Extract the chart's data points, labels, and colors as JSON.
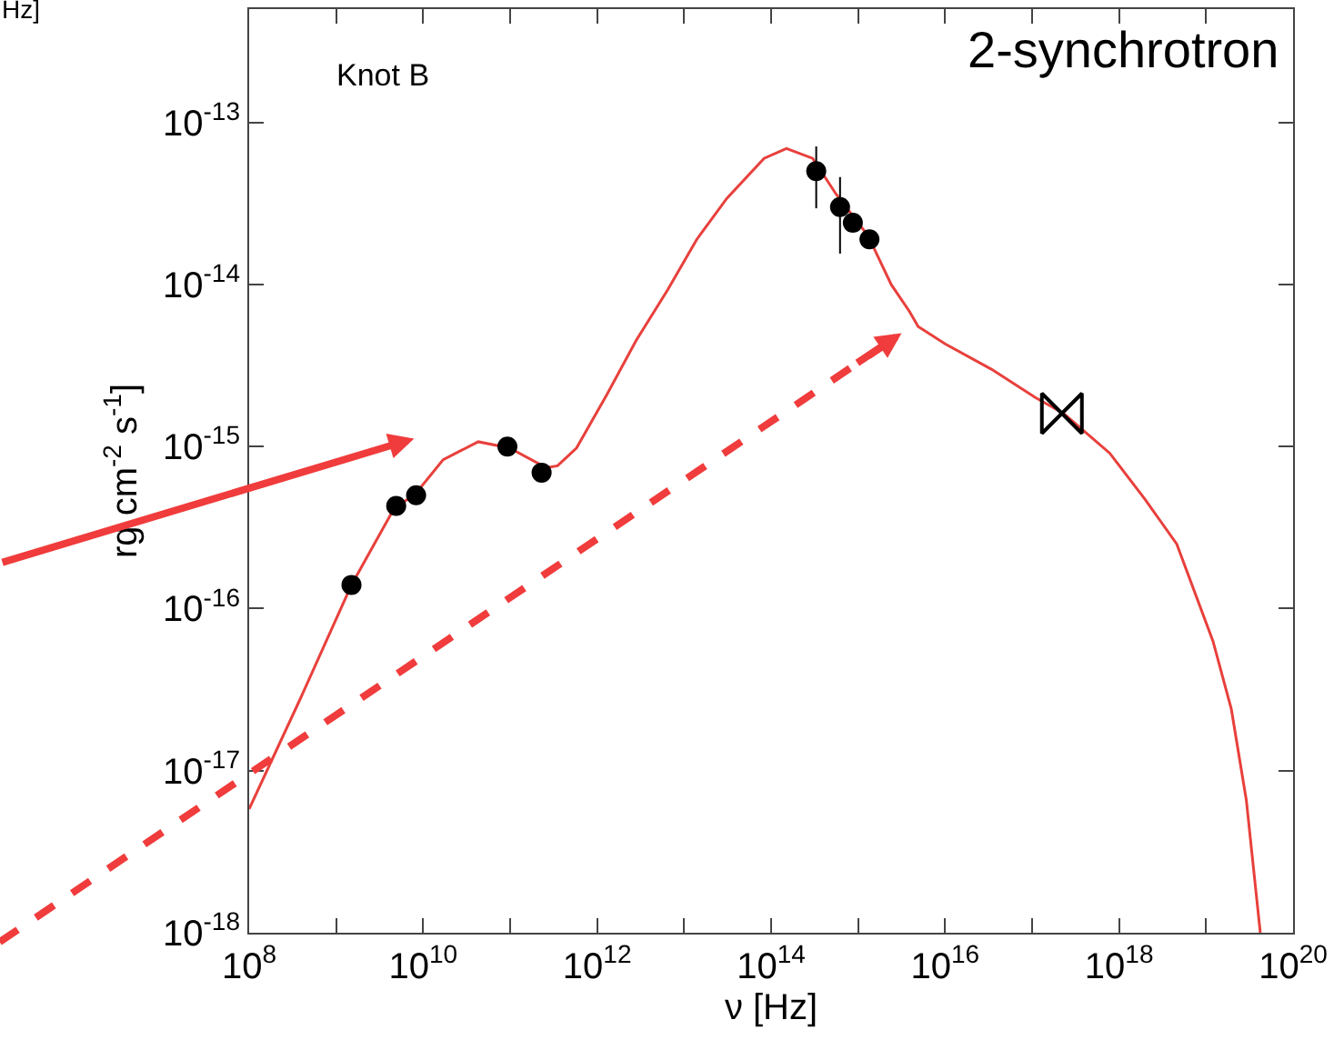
{
  "chart_data": {
    "type": "scatter",
    "xlabel": "ν [Hz]",
    "ylabel": "rg cm$^{-2}$ s$^{-1}$]",
    "log": "xy",
    "annotations": [
      "Knot B",
      "2-synchrotron",
      "Hz]"
    ],
    "xlim": [
      100000000.0,
      1e+20
    ],
    "ylim": [
      1e-18,
      5e-13
    ],
    "xticks": [
      {
        "value": 100000000.0,
        "label": "10$^{8}$"
      },
      {
        "value": 1000000000.0,
        "label": null
      },
      {
        "value": 10000000000.0,
        "label": "10$^{10}$"
      },
      {
        "value": 100000000000.0,
        "label": null
      },
      {
        "value": 1000000000000.0,
        "label": "10$^{12}$"
      },
      {
        "value": 10000000000000.0,
        "label": null
      },
      {
        "value": 100000000000000.0,
        "label": "10$^{14}$"
      },
      {
        "value": 1000000000000000.0,
        "label": null
      },
      {
        "value": 1e+16,
        "label": "10$^{16}$"
      },
      {
        "value": 1e+17,
        "label": null
      },
      {
        "value": 1e+18,
        "label": "10$^{18}$"
      },
      {
        "value": 1e+19,
        "label": null
      },
      {
        "value": 1e+20,
        "label": "10$^{20}$"
      }
    ],
    "yticks": [
      {
        "value": 1e-18,
        "label": "10$^{-18}$"
      },
      {
        "value": 1e-17,
        "label": "10$^{-17}$"
      },
      {
        "value": 1e-16,
        "label": "10$^{-16}$"
      },
      {
        "value": 1e-15,
        "label": "10$^{-15}$"
      },
      {
        "value": 1e-14,
        "label": "10$^{-14}$"
      },
      {
        "value": 1e-13,
        "label": "10$^{-13}$"
      }
    ],
    "series": [
      {
        "type": "line",
        "color": "#e8403c",
        "marker": "none",
        "line_style": "solid",
        "x": [
          100000000.0,
          390000000.0,
          1500000000.0,
          4700000000.0,
          7900000000.0,
          17000000000.0,
          43000000000.0,
          98000000000.0,
          260000000000.0,
          350000000000.0,
          580000000000.0,
          1300000000000.0,
          2800000000000.0,
          6500000000000.0,
          14000000000000.0,
          31000000000000.0,
          83000000000000.0,
          150000000000000.0,
          300000000000000.0,
          560000000000000.0,
          1300000000000000.0,
          2400000000000000.0,
          3900000000000000.0,
          4900000000000000.0,
          1e+16,
          3.4e+16,
          1.1e+17,
          2.3e+17,
          7.8e+17,
          2e+18,
          4.6e+18,
          1.2e+19,
          1.95e+19,
          2.9e+19,
          4.2e+19
        ],
        "values": [
          5.8e-18,
          2.8e-17,
          1.4e-16,
          4.2e-16,
          5e-16,
          8.3e-16,
          1.07e-15,
          9.8e-16,
          7.4e-16,
          7.6e-16,
          9.8e-16,
          2.1e-15,
          4.5e-15,
          9.3e-15,
          1.9e-14,
          3.4e-14,
          6e-14,
          6.9e-14,
          6e-14,
          3.6e-14,
          2e-14,
          1e-14,
          6.8e-15,
          5.5e-15,
          4.3e-15,
          3e-15,
          2e-15,
          1.6e-15,
          9.1e-16,
          4.7e-16,
          2.5e-16,
          6.3e-17,
          2.4e-17,
          6.6e-18,
          1e-18
        ]
      },
      {
        "color": "#000000",
        "marker": "circle",
        "x": [
          1500000000.0,
          4900000000.0,
          8300000000.0,
          93000000000.0,
          230000000000.0,
          330000000000000.0,
          620000000000000.0,
          870000000000000.0,
          1350000000000000.0
        ],
        "values": [
          1.4e-16,
          4.3e-16,
          5e-16,
          1e-15,
          6.9e-16,
          5e-14,
          3e-14,
          2.4e-14,
          1.9e-14
        ],
        "errors": [
          null,
          null,
          null,
          null,
          null,
          [
            2.95e-14,
            7.1e-14
          ],
          [
            1.55e-14,
            4.6e-14
          ],
          null,
          null
        ]
      },
      {
        "color": "#000000",
        "x": [
          2.2e+17
        ],
        "values": [
          1.6e-15
        ]
      }
    ]
  }
}
